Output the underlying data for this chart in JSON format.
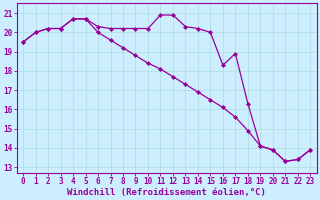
{
  "xlabel": "Windchill (Refroidissement éolien,°C)",
  "background_color": "#cceeff",
  "line_color": "#990099",
  "xlim": [
    -0.5,
    23.5
  ],
  "ylim": [
    12.7,
    21.5
  ],
  "yticks": [
    13,
    14,
    15,
    16,
    17,
    18,
    19,
    20,
    21
  ],
  "xticks": [
    0,
    1,
    2,
    3,
    4,
    5,
    6,
    7,
    8,
    9,
    10,
    11,
    12,
    13,
    14,
    15,
    16,
    17,
    18,
    19,
    20,
    21,
    22,
    23
  ],
  "series1_x": [
    0,
    1,
    2,
    3,
    4,
    5,
    6,
    7,
    8,
    9,
    10,
    11,
    12,
    13,
    14,
    15,
    16,
    17,
    18,
    19,
    20,
    21,
    22,
    23
  ],
  "series1_y": [
    19.5,
    20.0,
    20.2,
    20.2,
    20.7,
    20.7,
    20.3,
    20.2,
    20.2,
    20.2,
    20.2,
    20.9,
    20.9,
    20.3,
    20.2,
    20.0,
    18.3,
    18.9,
    16.3,
    14.1,
    13.9,
    13.3,
    13.4,
    13.9
  ],
  "series2_x": [
    0,
    1,
    2,
    3,
    4,
    5,
    6,
    7,
    8,
    9,
    10,
    11,
    12,
    13,
    14,
    15,
    16,
    17,
    18,
    19,
    20,
    21,
    22,
    23
  ],
  "series2_y": [
    19.5,
    20.0,
    20.2,
    20.2,
    20.7,
    20.7,
    20.0,
    19.6,
    19.2,
    18.8,
    18.4,
    18.1,
    17.7,
    17.3,
    16.9,
    16.5,
    16.1,
    15.6,
    14.9,
    14.1,
    13.9,
    13.3,
    13.4,
    13.9
  ],
  "grid_color": "#aadddd",
  "marker": "D",
  "markersize": 2.0,
  "linewidth": 0.9,
  "xlabel_fontsize": 6.5,
  "tick_fontsize": 5.5,
  "tick_color": "#990099"
}
